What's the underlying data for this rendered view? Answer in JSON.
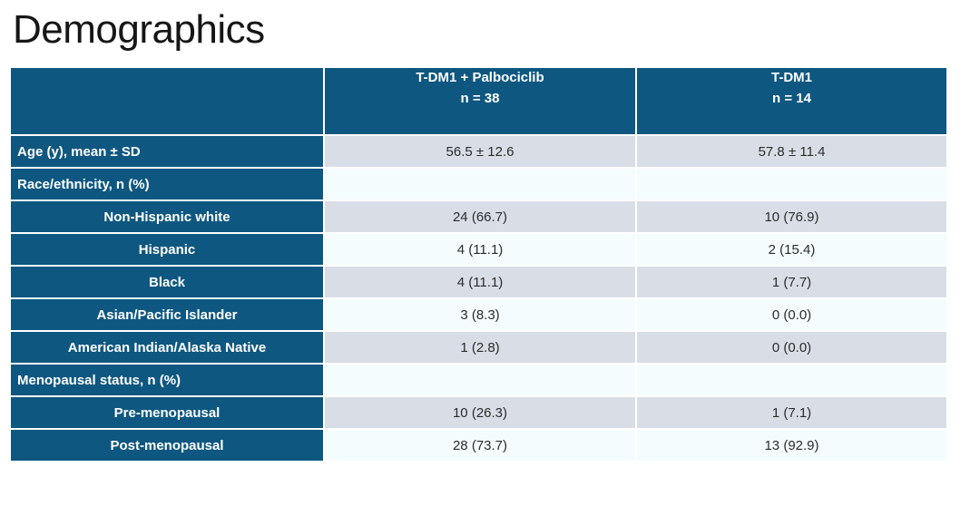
{
  "slide": {
    "title": "Demographics"
  },
  "colors": {
    "header_bg": "#0e5780",
    "label_bg": "#0e5780",
    "header_text": "#ffffff",
    "label_text": "#ffffff",
    "row_alt_bg": "#d9dee6",
    "row_bg": "#f5fcfd",
    "cell_text": "#2b2b2b",
    "title_text": "#161616"
  },
  "table": {
    "columns": [
      {
        "label": "",
        "sublabel": ""
      },
      {
        "label": "T-DM1 + Palbociclib",
        "sublabel": "n = 38"
      },
      {
        "label": "T-DM1",
        "sublabel": "n = 14"
      }
    ],
    "rows": [
      {
        "label": "Age (y), mean ± SD",
        "indent": false,
        "band": "alt",
        "values": [
          "56.5 ± 12.6",
          "57.8 ± 11.4"
        ]
      },
      {
        "label": "Race/ethnicity, n (%)",
        "indent": false,
        "band": "plain",
        "values": [
          "",
          ""
        ]
      },
      {
        "label": "Non-Hispanic white",
        "indent": true,
        "band": "alt",
        "values": [
          "24 (66.7)",
          "10 (76.9)"
        ]
      },
      {
        "label": "Hispanic",
        "indent": true,
        "band": "plain",
        "values": [
          "4 (11.1)",
          "2 (15.4)"
        ]
      },
      {
        "label": "Black",
        "indent": true,
        "band": "alt",
        "values": [
          "4 (11.1)",
          "1 (7.7)"
        ]
      },
      {
        "label": "Asian/Pacific Islander",
        "indent": true,
        "band": "plain",
        "values": [
          "3 (8.3)",
          "0 (0.0)"
        ]
      },
      {
        "label": "American Indian/Alaska Native",
        "indent": true,
        "band": "alt",
        "values": [
          "1 (2.8)",
          "0 (0.0)"
        ]
      },
      {
        "label": "Menopausal status, n (%)",
        "indent": false,
        "band": "plain",
        "values": [
          "",
          ""
        ]
      },
      {
        "label": "Pre-menopausal",
        "indent": true,
        "band": "alt",
        "values": [
          "10 (26.3)",
          "1 (7.1)"
        ]
      },
      {
        "label": "Post-menopausal",
        "indent": true,
        "band": "plain",
        "values": [
          "28 (73.7)",
          "13 (92.9)"
        ]
      }
    ]
  }
}
